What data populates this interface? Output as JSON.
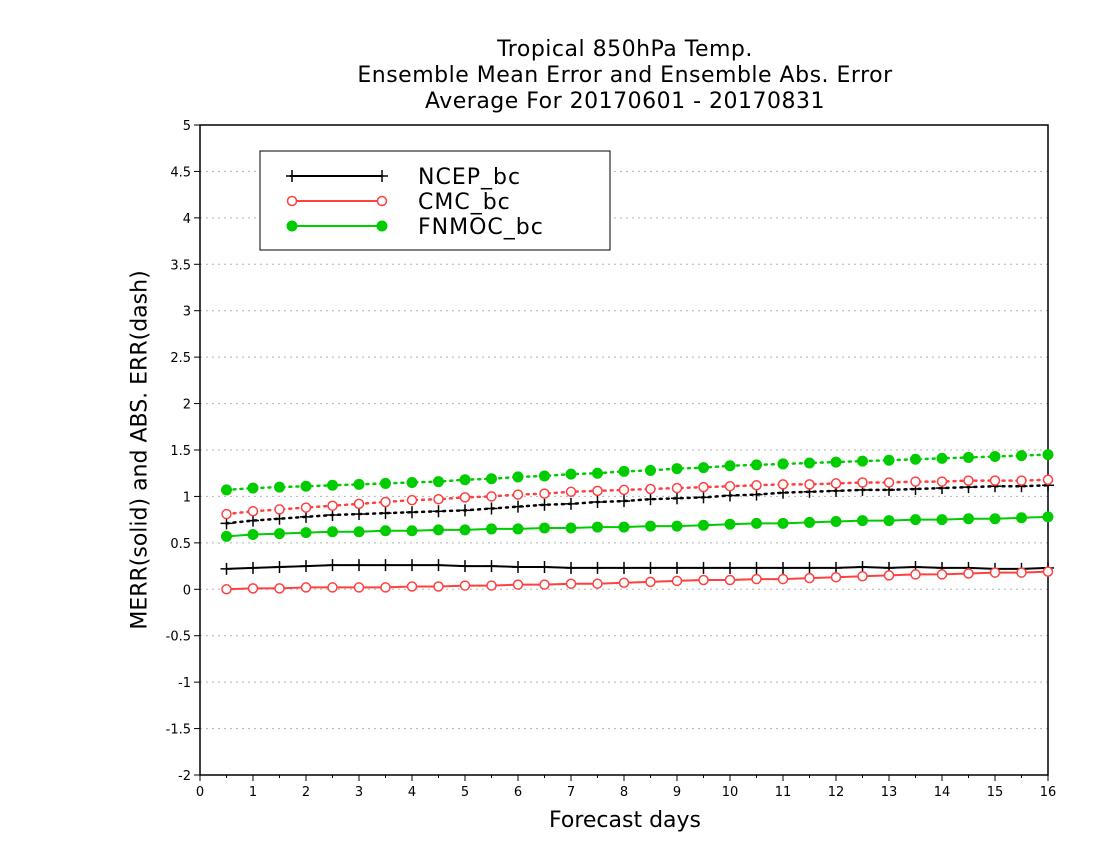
{
  "chart_data": {
    "type": "line",
    "title": [
      "Tropical 850hPa Temp.",
      "Ensemble Mean Error and Ensemble Abs. Error",
      "Average For 20170601 - 20170831"
    ],
    "xlabel": "Forecast days",
    "ylabel": "MERR(solid) and ABS. ERR(dash)",
    "xlim": [
      0,
      16
    ],
    "ylim": [
      -2,
      5
    ],
    "x_ticks": [
      0,
      1,
      2,
      3,
      4,
      5,
      6,
      7,
      8,
      9,
      10,
      11,
      12,
      13,
      14,
      15,
      16
    ],
    "x_tick_labels": [
      "0",
      "1",
      "2",
      "3",
      "4",
      "5",
      "6",
      "7",
      "8",
      "9",
      "10",
      "11",
      "12",
      "13",
      "14",
      "15",
      "16"
    ],
    "y_ticks": [
      -2,
      -1.5,
      -1,
      -0.5,
      0,
      0.5,
      1,
      1.5,
      2,
      2.5,
      3,
      3.5,
      4,
      4.5,
      5
    ],
    "y_tick_labels": [
      "-2",
      "-1.5",
      "-1",
      "-0.5",
      "0",
      "0.5",
      "1",
      "1.5",
      "2",
      "2.5",
      "3",
      "3.5",
      "4",
      "4.5",
      "5"
    ],
    "grid": "horizontal dotted",
    "legend_position": "top-left",
    "x": [
      0.5,
      1,
      1.5,
      2,
      2.5,
      3,
      3.5,
      4,
      4.5,
      5,
      5.5,
      6,
      6.5,
      7,
      7.5,
      8,
      8.5,
      9,
      9.5,
      10,
      10.5,
      11,
      11.5,
      12,
      12.5,
      13,
      13.5,
      14,
      14.5,
      15,
      15.5,
      16
    ],
    "series": [
      {
        "name": "NCEP_bc",
        "color": "#000000",
        "marker": "plus",
        "merr": [
          0.22,
          0.23,
          0.24,
          0.25,
          0.26,
          0.26,
          0.26,
          0.26,
          0.26,
          0.25,
          0.25,
          0.24,
          0.24,
          0.23,
          0.23,
          0.23,
          0.23,
          0.23,
          0.23,
          0.23,
          0.23,
          0.23,
          0.23,
          0.23,
          0.24,
          0.23,
          0.24,
          0.23,
          0.23,
          0.22,
          0.22,
          0.23
        ],
        "abs_err": [
          0.71,
          0.74,
          0.76,
          0.78,
          0.8,
          0.81,
          0.82,
          0.83,
          0.84,
          0.85,
          0.87,
          0.89,
          0.91,
          0.92,
          0.94,
          0.95,
          0.97,
          0.98,
          0.99,
          1.01,
          1.02,
          1.04,
          1.05,
          1.06,
          1.07,
          1.07,
          1.08,
          1.09,
          1.1,
          1.11,
          1.11,
          1.12
        ]
      },
      {
        "name": "CMC_bc",
        "color": "#ff4040",
        "marker": "open-circle",
        "merr": [
          0.0,
          0.01,
          0.01,
          0.02,
          0.02,
          0.02,
          0.02,
          0.03,
          0.03,
          0.04,
          0.04,
          0.05,
          0.05,
          0.06,
          0.06,
          0.07,
          0.08,
          0.09,
          0.1,
          0.1,
          0.11,
          0.11,
          0.12,
          0.13,
          0.14,
          0.15,
          0.16,
          0.16,
          0.17,
          0.18,
          0.18,
          0.19
        ],
        "abs_err": [
          0.81,
          0.84,
          0.86,
          0.88,
          0.9,
          0.92,
          0.94,
          0.96,
          0.97,
          0.99,
          1.0,
          1.02,
          1.03,
          1.05,
          1.06,
          1.07,
          1.08,
          1.09,
          1.1,
          1.11,
          1.12,
          1.13,
          1.13,
          1.14,
          1.15,
          1.15,
          1.16,
          1.16,
          1.17,
          1.17,
          1.17,
          1.18
        ]
      },
      {
        "name": "FNMOC_bc",
        "color": "#00cc00",
        "marker": "filled-circle",
        "merr": [
          0.57,
          0.59,
          0.6,
          0.61,
          0.62,
          0.62,
          0.63,
          0.63,
          0.64,
          0.64,
          0.65,
          0.65,
          0.66,
          0.66,
          0.67,
          0.67,
          0.68,
          0.68,
          0.69,
          0.7,
          0.71,
          0.71,
          0.72,
          0.73,
          0.74,
          0.74,
          0.75,
          0.75,
          0.76,
          0.76,
          0.77,
          0.78
        ],
        "abs_err": [
          1.07,
          1.09,
          1.1,
          1.11,
          1.12,
          1.13,
          1.14,
          1.15,
          1.16,
          1.18,
          1.19,
          1.21,
          1.22,
          1.24,
          1.25,
          1.27,
          1.28,
          1.3,
          1.31,
          1.33,
          1.34,
          1.35,
          1.36,
          1.37,
          1.38,
          1.39,
          1.4,
          1.41,
          1.42,
          1.43,
          1.44,
          1.45
        ]
      }
    ]
  }
}
